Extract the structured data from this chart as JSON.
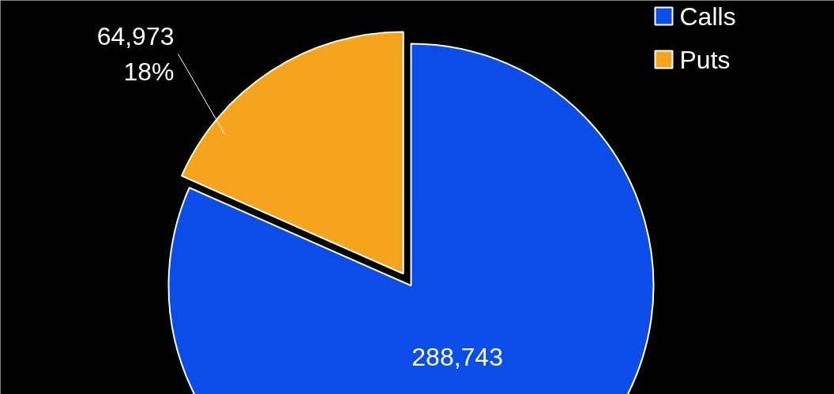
{
  "chart_data": {
    "type": "pie",
    "categories": [
      "Calls",
      "Puts"
    ],
    "values": [
      288743,
      64973
    ],
    "colors": [
      "#0a4de8",
      "#f7a41d"
    ],
    "value_labels": [
      "288,743",
      "64,973\n18%"
    ],
    "legend": "top right"
  }
}
